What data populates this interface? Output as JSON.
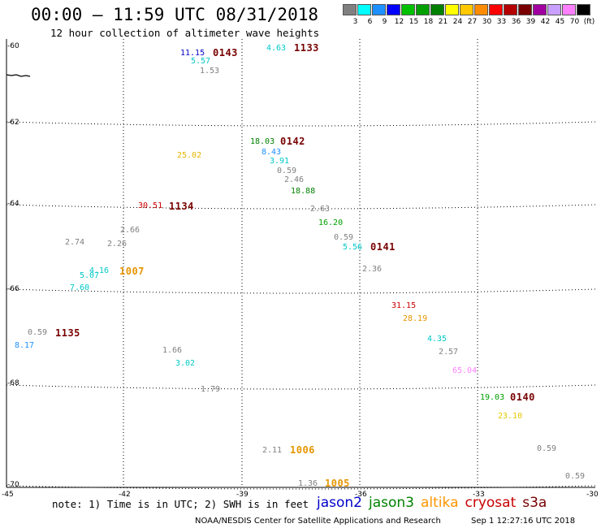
{
  "title": "00:00 – 11:59 UTC 08/31/2018",
  "subtitle": "12 hour collection of altimeter wave heights",
  "legend": {
    "colors": [
      "#808080",
      "#00ffff",
      "#1e90ff",
      "#0000ff",
      "#00c000",
      "#00a000",
      "#008000",
      "#ffff00",
      "#ffc800",
      "#ff8c00",
      "#ff0000",
      "#b40000",
      "#780000",
      "#a000a0",
      "#c8a0ff",
      "#ff80ff",
      "#000000"
    ],
    "labels": [
      "3",
      "6",
      "9",
      "12",
      "15",
      "18",
      "21",
      "24",
      "27",
      "30",
      "33",
      "36",
      "39",
      "42",
      "45",
      "70",
      "(ft)"
    ]
  },
  "axes": {
    "lat_labels": [
      "-60",
      "-62",
      "-64",
      "-66",
      "-68",
      "-70"
    ],
    "lon_labels": [
      "-45",
      "-42",
      "-39",
      "-36",
      "-33",
      "-30"
    ]
  },
  "observations": [
    {
      "text": "11.15",
      "color": "#0000c8"
    },
    {
      "text": "5.57",
      "color": "#00c8c8"
    },
    {
      "text": "1.53",
      "color": "#808080"
    },
    {
      "text": "4.63",
      "color": "#00c8c8"
    },
    {
      "text": "18.03",
      "color": "#008000"
    },
    {
      "text": "8.43",
      "color": "#1e90ff"
    },
    {
      "text": "3.91",
      "color": "#00c8c8"
    },
    {
      "text": "0.59",
      "color": "#808080"
    },
    {
      "text": "2.46",
      "color": "#808080"
    },
    {
      "text": "18.88",
      "color": "#008000"
    },
    {
      "text": "25.02",
      "color": "#e6b400"
    },
    {
      "text": "30.51",
      "color": "#c80000"
    },
    {
      "text": "2.63",
      "color": "#808080"
    },
    {
      "text": "16.20",
      "color": "#00a000"
    },
    {
      "text": "0.59",
      "color": "#808080"
    },
    {
      "text": "5.56",
      "color": "#00c8c8"
    },
    {
      "text": "2.36",
      "color": "#808080"
    },
    {
      "text": "2.66",
      "color": "#808080"
    },
    {
      "text": "2.74",
      "color": "#808080"
    },
    {
      "text": "2.26",
      "color": "#808080"
    },
    {
      "text": "4.16",
      "color": "#00c8c8"
    },
    {
      "text": "5.07",
      "color": "#00c8c8"
    },
    {
      "text": "7.60",
      "color": "#00c8c8"
    },
    {
      "text": "0.59",
      "color": "#808080"
    },
    {
      "text": "8.17",
      "color": "#1e90ff"
    },
    {
      "text": "1.66",
      "color": "#808080"
    },
    {
      "text": "3.02",
      "color": "#00c8c8"
    },
    {
      "text": "1.79",
      "color": "#808080"
    },
    {
      "text": "31.15",
      "color": "#c80000"
    },
    {
      "text": "28.19",
      "color": "#e69600"
    },
    {
      "text": "4.35",
      "color": "#00c8c8"
    },
    {
      "text": "2.57",
      "color": "#808080"
    },
    {
      "text": "65.04",
      "color": "#ff80ff"
    },
    {
      "text": "19.03",
      "color": "#00a000"
    },
    {
      "text": "23.10",
      "color": "#e6c800"
    },
    {
      "text": "0.59",
      "color": "#808080"
    },
    {
      "text": "0.59",
      "color": "#808080"
    },
    {
      "text": "2.11",
      "color": "#808080"
    },
    {
      "text": "1.36",
      "color": "#808080"
    }
  ],
  "time_tags": [
    {
      "text": "0143",
      "color": "#780000"
    },
    {
      "text": "1133",
      "color": "#780000"
    },
    {
      "text": "0142",
      "color": "#780000"
    },
    {
      "text": "1134",
      "color": "#780000"
    },
    {
      "text": "0141",
      "color": "#780000"
    },
    {
      "text": "1007",
      "color": "#e69600"
    },
    {
      "text": "1135",
      "color": "#780000"
    },
    {
      "text": "0140",
      "color": "#780000"
    },
    {
      "text": "1006",
      "color": "#e69600"
    },
    {
      "text": "1005",
      "color": "#e69600"
    }
  ],
  "note": "note: 1) Time is in UTC; 2) SWH is in feet",
  "satellites": [
    {
      "name": "jason2",
      "color": "#0000c8"
    },
    {
      "name": "jason3",
      "color": "#008000"
    },
    {
      "name": "altika",
      "color": "#ff9600"
    },
    {
      "name": "cryosat",
      "color": "#c80000"
    },
    {
      "name": "s3a",
      "color": "#780000"
    }
  ],
  "footer": {
    "center": "NOAA/NESDIS Center for Satellite Applications and Research",
    "date": "Sep  1 12:27:16 UTC 2018"
  }
}
